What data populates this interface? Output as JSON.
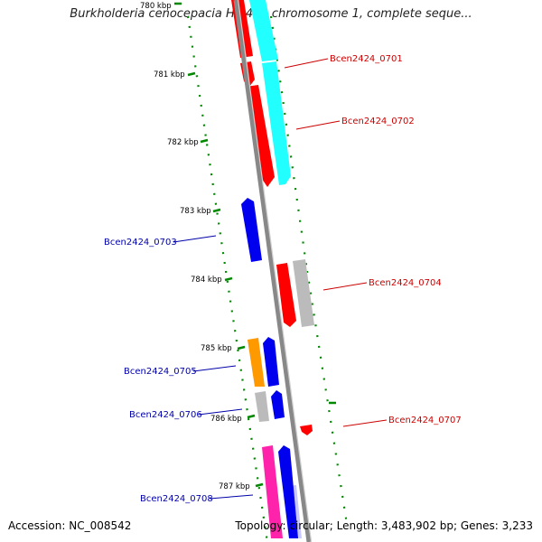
{
  "title": "Burkholderia cenocepacia HI2424 chromosome 1, complete seque...",
  "footer": {
    "accession": "Accession: NC_008542",
    "summary": "Topology: circular; Length: 3,483,902 bp; Genes: 3,233"
  },
  "colors": {
    "red": "#ff0000",
    "blue": "#0000ee",
    "cyan": "#22ffff",
    "gray": "#bbbbbb",
    "orange": "#ff9900",
    "pink": "#ff22aa",
    "lavender": "#c8c8ff",
    "tick": "#008800",
    "backbone": "#888888",
    "label_red": "#cc0000",
    "label_blue": "#0000aa"
  },
  "kbp_ticks": [
    {
      "label": "780 kbp",
      "kbp": 780
    },
    {
      "label": "781 kbp",
      "kbp": 781
    },
    {
      "label": "782 kbp",
      "kbp": 782
    },
    {
      "label": "783 kbp",
      "kbp": 783
    },
    {
      "label": "784 kbp",
      "kbp": 784
    },
    {
      "label": "785 kbp",
      "kbp": 785
    },
    {
      "label": "786 kbp",
      "kbp": 786
    },
    {
      "label": "787 kbp",
      "kbp": 787
    }
  ],
  "gene_labels": [
    {
      "text": "Bcen2424_0701",
      "color": "red"
    },
    {
      "text": "Bcen2424_0702",
      "color": "red"
    },
    {
      "text": "Bcen2424_0703",
      "color": "blue"
    },
    {
      "text": "Bcen2424_0704",
      "color": "red"
    },
    {
      "text": "Bcen2424_0705",
      "color": "blue"
    },
    {
      "text": "Bcen2424_0706",
      "color": "blue"
    },
    {
      "text": "Bcen2424_0707",
      "color": "red"
    },
    {
      "text": "Bcen2424_0708",
      "color": "blue"
    }
  ]
}
